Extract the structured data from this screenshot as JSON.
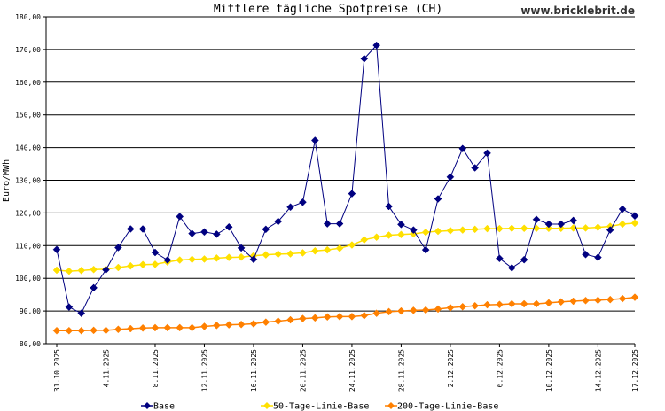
{
  "chart_data": {
    "type": "line",
    "title": "Mittlere tägliche Spotpreise (CH)",
    "watermark": "www.bricklebrit.de",
    "ylabel": "Euro/MWh",
    "xlabel": "",
    "ylim": [
      80,
      180
    ],
    "yticks": [
      "80,00",
      "90,00",
      "100,00",
      "110,00",
      "120,00",
      "130,00",
      "140,00",
      "150,00",
      "160,00",
      "170,00",
      "180,00"
    ],
    "grid": "horizontal",
    "legend": "bottom",
    "x": [
      "31.10.2025",
      "1.11.2025",
      "2.11.2025",
      "3.11.2025",
      "4.11.2025",
      "5.11.2025",
      "6.11.2025",
      "7.11.2025",
      "8.11.2025",
      "9.11.2025",
      "10.11.2025",
      "11.11.2025",
      "12.11.2025",
      "13.11.2025",
      "14.11.2025",
      "15.11.2025",
      "16.11.2025",
      "17.11.2025",
      "18.11.2025",
      "19.11.2025",
      "20.11.2025",
      "21.11.2025",
      "22.11.2025",
      "23.11.2025",
      "24.11.2025",
      "25.11.2025",
      "26.11.2025",
      "27.11.2025",
      "28.11.2025",
      "29.11.2025",
      "30.11.2025",
      "1.12.2025",
      "2.12.2025",
      "3.12.2025",
      "4.12.2025",
      "5.12.2025",
      "6.12.2025",
      "7.12.2025",
      "8.12.2025",
      "9.12.2025",
      "10.12.2025",
      "11.12.2025",
      "12.12.2025",
      "13.12.2025",
      "14.12.2025",
      "15.12.2025",
      "16.12.2025",
      "17.12.2025"
    ],
    "xtick_labels": [
      "31.10.2025",
      "4.11.2025",
      "8.11.2025",
      "12.11.2025",
      "16.11.2025",
      "20.11.2025",
      "24.11.2025",
      "28.11.2025",
      "2.12.2025",
      "6.12.2025",
      "10.12.2025",
      "14.12.2025",
      "17.12.2025"
    ],
    "series": [
      {
        "name": "Base",
        "color": "#000080",
        "values": [
          108.8,
          91.2,
          89.3,
          97.1,
          102.6,
          109.4,
          115.1,
          115.1,
          107.9,
          105.6,
          118.9,
          113.7,
          114.2,
          113.5,
          115.7,
          109.3,
          105.8,
          115.0,
          117.4,
          121.8,
          123.3,
          142.2,
          116.7,
          116.7,
          125.9,
          167.2,
          171.3,
          122.0,
          116.5,
          114.8,
          108.7,
          124.3,
          131.0,
          139.7,
          133.8,
          138.3,
          106.1,
          103.2,
          105.7,
          118.0,
          116.6,
          116.6,
          117.7,
          107.3,
          106.4,
          114.8,
          121.2,
          119.1
        ]
      },
      {
        "name": "50-Tage-Linie-Base",
        "color": "#ffe000",
        "values": [
          102.5,
          102.2,
          102.4,
          102.7,
          102.8,
          103.3,
          103.8,
          104.2,
          104.3,
          105.0,
          105.6,
          105.8,
          105.9,
          106.2,
          106.4,
          106.5,
          106.9,
          107.2,
          107.4,
          107.5,
          107.8,
          108.4,
          108.7,
          109.2,
          110.2,
          111.8,
          112.6,
          113.2,
          113.4,
          113.6,
          114.1,
          114.4,
          114.6,
          114.8,
          115.0,
          115.2,
          115.2,
          115.3,
          115.3,
          115.3,
          115.3,
          115.3,
          115.4,
          115.4,
          115.6,
          115.9,
          116.6,
          116.9
        ]
      },
      {
        "name": "200-Tage-Linie-Base",
        "color": "#ff8000",
        "values": [
          84.0,
          84.0,
          84.0,
          84.1,
          84.1,
          84.4,
          84.6,
          84.8,
          84.9,
          84.9,
          84.9,
          84.9,
          85.3,
          85.6,
          85.8,
          85.9,
          86.1,
          86.6,
          86.9,
          87.3,
          87.7,
          87.9,
          88.2,
          88.3,
          88.3,
          88.6,
          89.3,
          89.8,
          90.0,
          90.2,
          90.3,
          90.6,
          91.0,
          91.3,
          91.6,
          91.9,
          92.0,
          92.2,
          92.2,
          92.2,
          92.5,
          92.8,
          93.0,
          93.2,
          93.3,
          93.5,
          93.8,
          94.2
        ]
      }
    ]
  }
}
